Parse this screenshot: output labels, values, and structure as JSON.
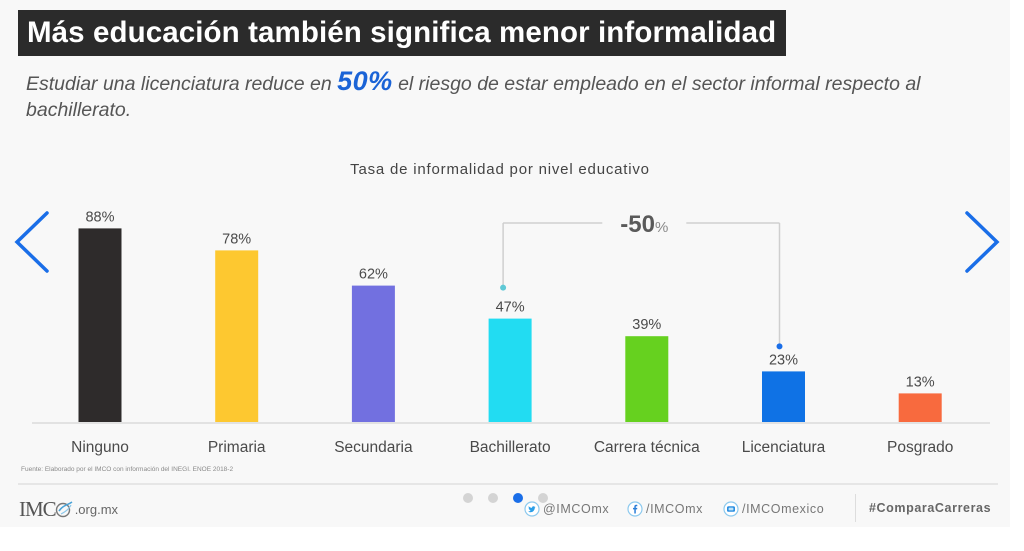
{
  "header": {
    "title": "Más educación también significa menor informalidad",
    "subtitle_before": "Estudiar una licenciatura reduce en ",
    "subtitle_highlight": "50%",
    "subtitle_after": " el riesgo de estar empleado en el sector informal respecto al bachillerato."
  },
  "colors": {
    "accent_blue": "#1a6ee8",
    "title_bg": "#2b2b2b",
    "highlight": "#1a63d6"
  },
  "navigation": {
    "prev_icon": "chevron-left-icon",
    "next_icon": "chevron-right-icon",
    "slides_total": 4,
    "active_slide": 3
  },
  "chart_data": {
    "type": "bar",
    "title": "Tasa de informalidad por nivel educativo",
    "xlabel": "",
    "ylabel": "",
    "ylim": [
      0,
      100
    ],
    "grid": false,
    "unit": "%",
    "categories": [
      "Ninguno",
      "Primaria",
      "Secundaria",
      "Bachillerato",
      "Carrera técnica",
      "Licenciatura",
      "Posgrado"
    ],
    "values": [
      88,
      78,
      62,
      47,
      39,
      23,
      13
    ],
    "value_labels": [
      "88%",
      "78%",
      "62%",
      "47%",
      "39%",
      "23%",
      "13%"
    ],
    "bar_colors": [
      "#2e2b2b",
      "#fdc830",
      "#7270e0",
      "#22dcf2",
      "#66d11f",
      "#0f72e5",
      "#f86a3e"
    ],
    "annotation": {
      "from_category": "Bachillerato",
      "to_category": "Licenciatura",
      "label_number": "-50",
      "label_unit": "%",
      "from_dot_color": "#5fc9d6",
      "to_dot_color": "#1a6ee8"
    }
  },
  "source": "Fuente: Elaborado por el IMCO con información del INEGI. ENOE 2018-2",
  "footer": {
    "logo_text": "IMC",
    "logo_domain": ".org.mx",
    "social": [
      {
        "icon": "twitter-icon",
        "label": "@IMCOmx"
      },
      {
        "icon": "facebook-icon",
        "label": "/IMCOmx"
      },
      {
        "icon": "youtube-icon",
        "label": "/IMCOmexico"
      }
    ],
    "hashtag": "#ComparaCarreras"
  }
}
